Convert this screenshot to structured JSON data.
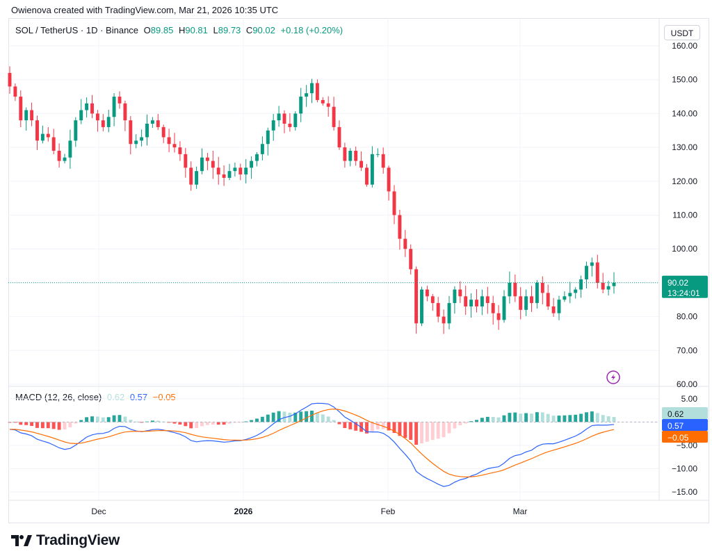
{
  "caption": "Owienova created with TradingView.com, Mar 21, 2026 10:35 UTC",
  "legend": {
    "symbol": "SOL / TetherUS · 1D · Binance",
    "o_label": "O",
    "o_value": "89.85",
    "h_label": "H",
    "h_value": "90.81",
    "l_label": "L",
    "l_value": "89.73",
    "c_label": "C",
    "c_value": "90.02",
    "change": "+0.18 (+0.20%)"
  },
  "unit_button": "USDT",
  "last_price_label": "90.02",
  "countdown_label": "13:24:01",
  "macd_legend": {
    "title": "MACD (12, 26, close)",
    "hist_value": "0.62",
    "macd_value": "0.57",
    "signal_value": "−0.05"
  },
  "macd_tags": {
    "hist": "0.62",
    "macd": "0.57",
    "signal": "−0.05"
  },
  "footer": {
    "brand": "TradingView",
    "logo_icon": "tradingview-logo-icon"
  },
  "colors": {
    "up": "#089981",
    "down": "#f23645",
    "macd_line": "#2962ff",
    "signal_line": "#ff6d00",
    "hist_up_strong": "#26a69a",
    "hist_up_weak": "#b2dfdb",
    "hist_down_strong": "#ff5252",
    "hist_down_weak": "#ffcdd2"
  },
  "chart_data": [
    {
      "type": "candlestick",
      "title": "SOL / TetherUS · 1D · Binance",
      "y_axis_ticks": [
        "160.00",
        "150.00",
        "140.00",
        "130.00",
        "120.00",
        "110.00",
        "100.00",
        "90.00",
        "80.00",
        "70.00",
        "60.00"
      ],
      "x_axis_ticks": [
        "Dec",
        "2026",
        "Feb",
        "Mar"
      ],
      "ylim": [
        60,
        162
      ],
      "last_price": 90.02,
      "closes": [
        148,
        145,
        138,
        141,
        138,
        132,
        134,
        133,
        129,
        126,
        127,
        132,
        138,
        141,
        143,
        140,
        138,
        136,
        139,
        145,
        143,
        138,
        131,
        132,
        133,
        137,
        138,
        136,
        133,
        131,
        130,
        128,
        124,
        119,
        123,
        127,
        126,
        124,
        122,
        121,
        123,
        124,
        122,
        124,
        126,
        128,
        131,
        135,
        138,
        140,
        137,
        136,
        140,
        145,
        146,
        149,
        144,
        143,
        142,
        136,
        130,
        126,
        129,
        126,
        124,
        119,
        128,
        128,
        124,
        117,
        110,
        103,
        100,
        94,
        78,
        88,
        86,
        84,
        80,
        78,
        84,
        88,
        86,
        83,
        85,
        83,
        86,
        84,
        81,
        79,
        86,
        90,
        86,
        82,
        86,
        84,
        90,
        87,
        83,
        81,
        85,
        86,
        87,
        88,
        91,
        95,
        96,
        90,
        88,
        89,
        90.02
      ],
      "macd_ylim": [
        -16.5,
        7.5
      ],
      "macd_ticks": [
        "5.00",
        "0.00",
        "−5.00",
        "−10.00",
        "−15.00"
      ]
    }
  ]
}
